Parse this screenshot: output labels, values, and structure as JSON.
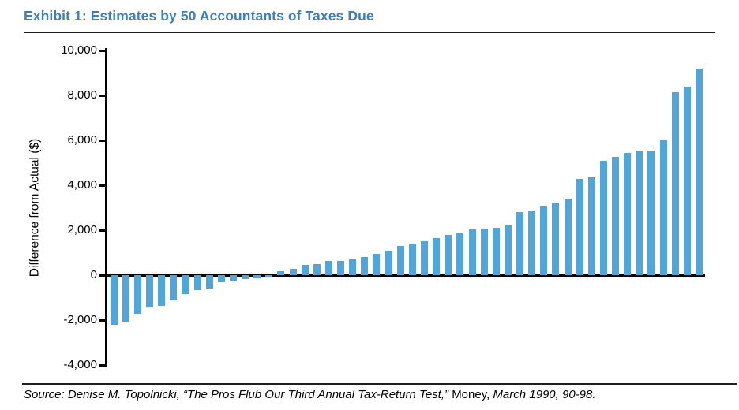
{
  "header": {
    "title": "Exhibit 1: Estimates by 50 Accountants of Taxes Due"
  },
  "chart_data": {
    "type": "bar",
    "title": "Exhibit 1: Estimates by 50 Accountants of Taxes Due",
    "subtitle": "",
    "xlabel": "",
    "ylabel": "Difference from Actual ($)",
    "ylim": [
      -4000,
      10000
    ],
    "grid": false,
    "legend_position": "none",
    "bar_color": "#52a5d8",
    "n_bars": 50,
    "description": "50 accountants' tax estimates sorted ascending by difference from actual, dollars",
    "y_ticks": [
      {
        "label": "10,000",
        "value": 10000
      },
      {
        "label": "8,000",
        "value": 8000
      },
      {
        "label": "6,000",
        "value": 6000
      },
      {
        "label": "4,000",
        "value": 4000
      },
      {
        "label": "2,000",
        "value": 2000
      },
      {
        "label": "0",
        "value": 0
      },
      {
        "label": "-2,000",
        "value": -2000
      },
      {
        "label": "-4,000",
        "value": -4000
      }
    ],
    "values": [
      -2200,
      -2050,
      -1700,
      -1400,
      -1350,
      -1100,
      -850,
      -650,
      -600,
      -300,
      -250,
      -170,
      -120,
      -50,
      200,
      300,
      450,
      500,
      640,
      650,
      700,
      820,
      940,
      1100,
      1300,
      1400,
      1500,
      1650,
      1800,
      1870,
      2050,
      2070,
      2100,
      2250,
      2800,
      2900,
      3100,
      3250,
      3400,
      4300,
      4350,
      5100,
      5250,
      5450,
      5500,
      5550,
      6000,
      8150,
      8400,
      9200
    ]
  },
  "footer": {
    "source_prefix": "Source: Denise M. Topolnicki, “The Pros Flub Our Third Annual Tax-Return Test,” ",
    "source_journal": "Money,",
    "source_suffix": " March 1990, 90-98."
  },
  "colors": {
    "title_blue": "#3c7fc0",
    "bar_blue": "#52a5d8",
    "rule_dark": "#1f1f1f",
    "axis_black": "#000000"
  }
}
